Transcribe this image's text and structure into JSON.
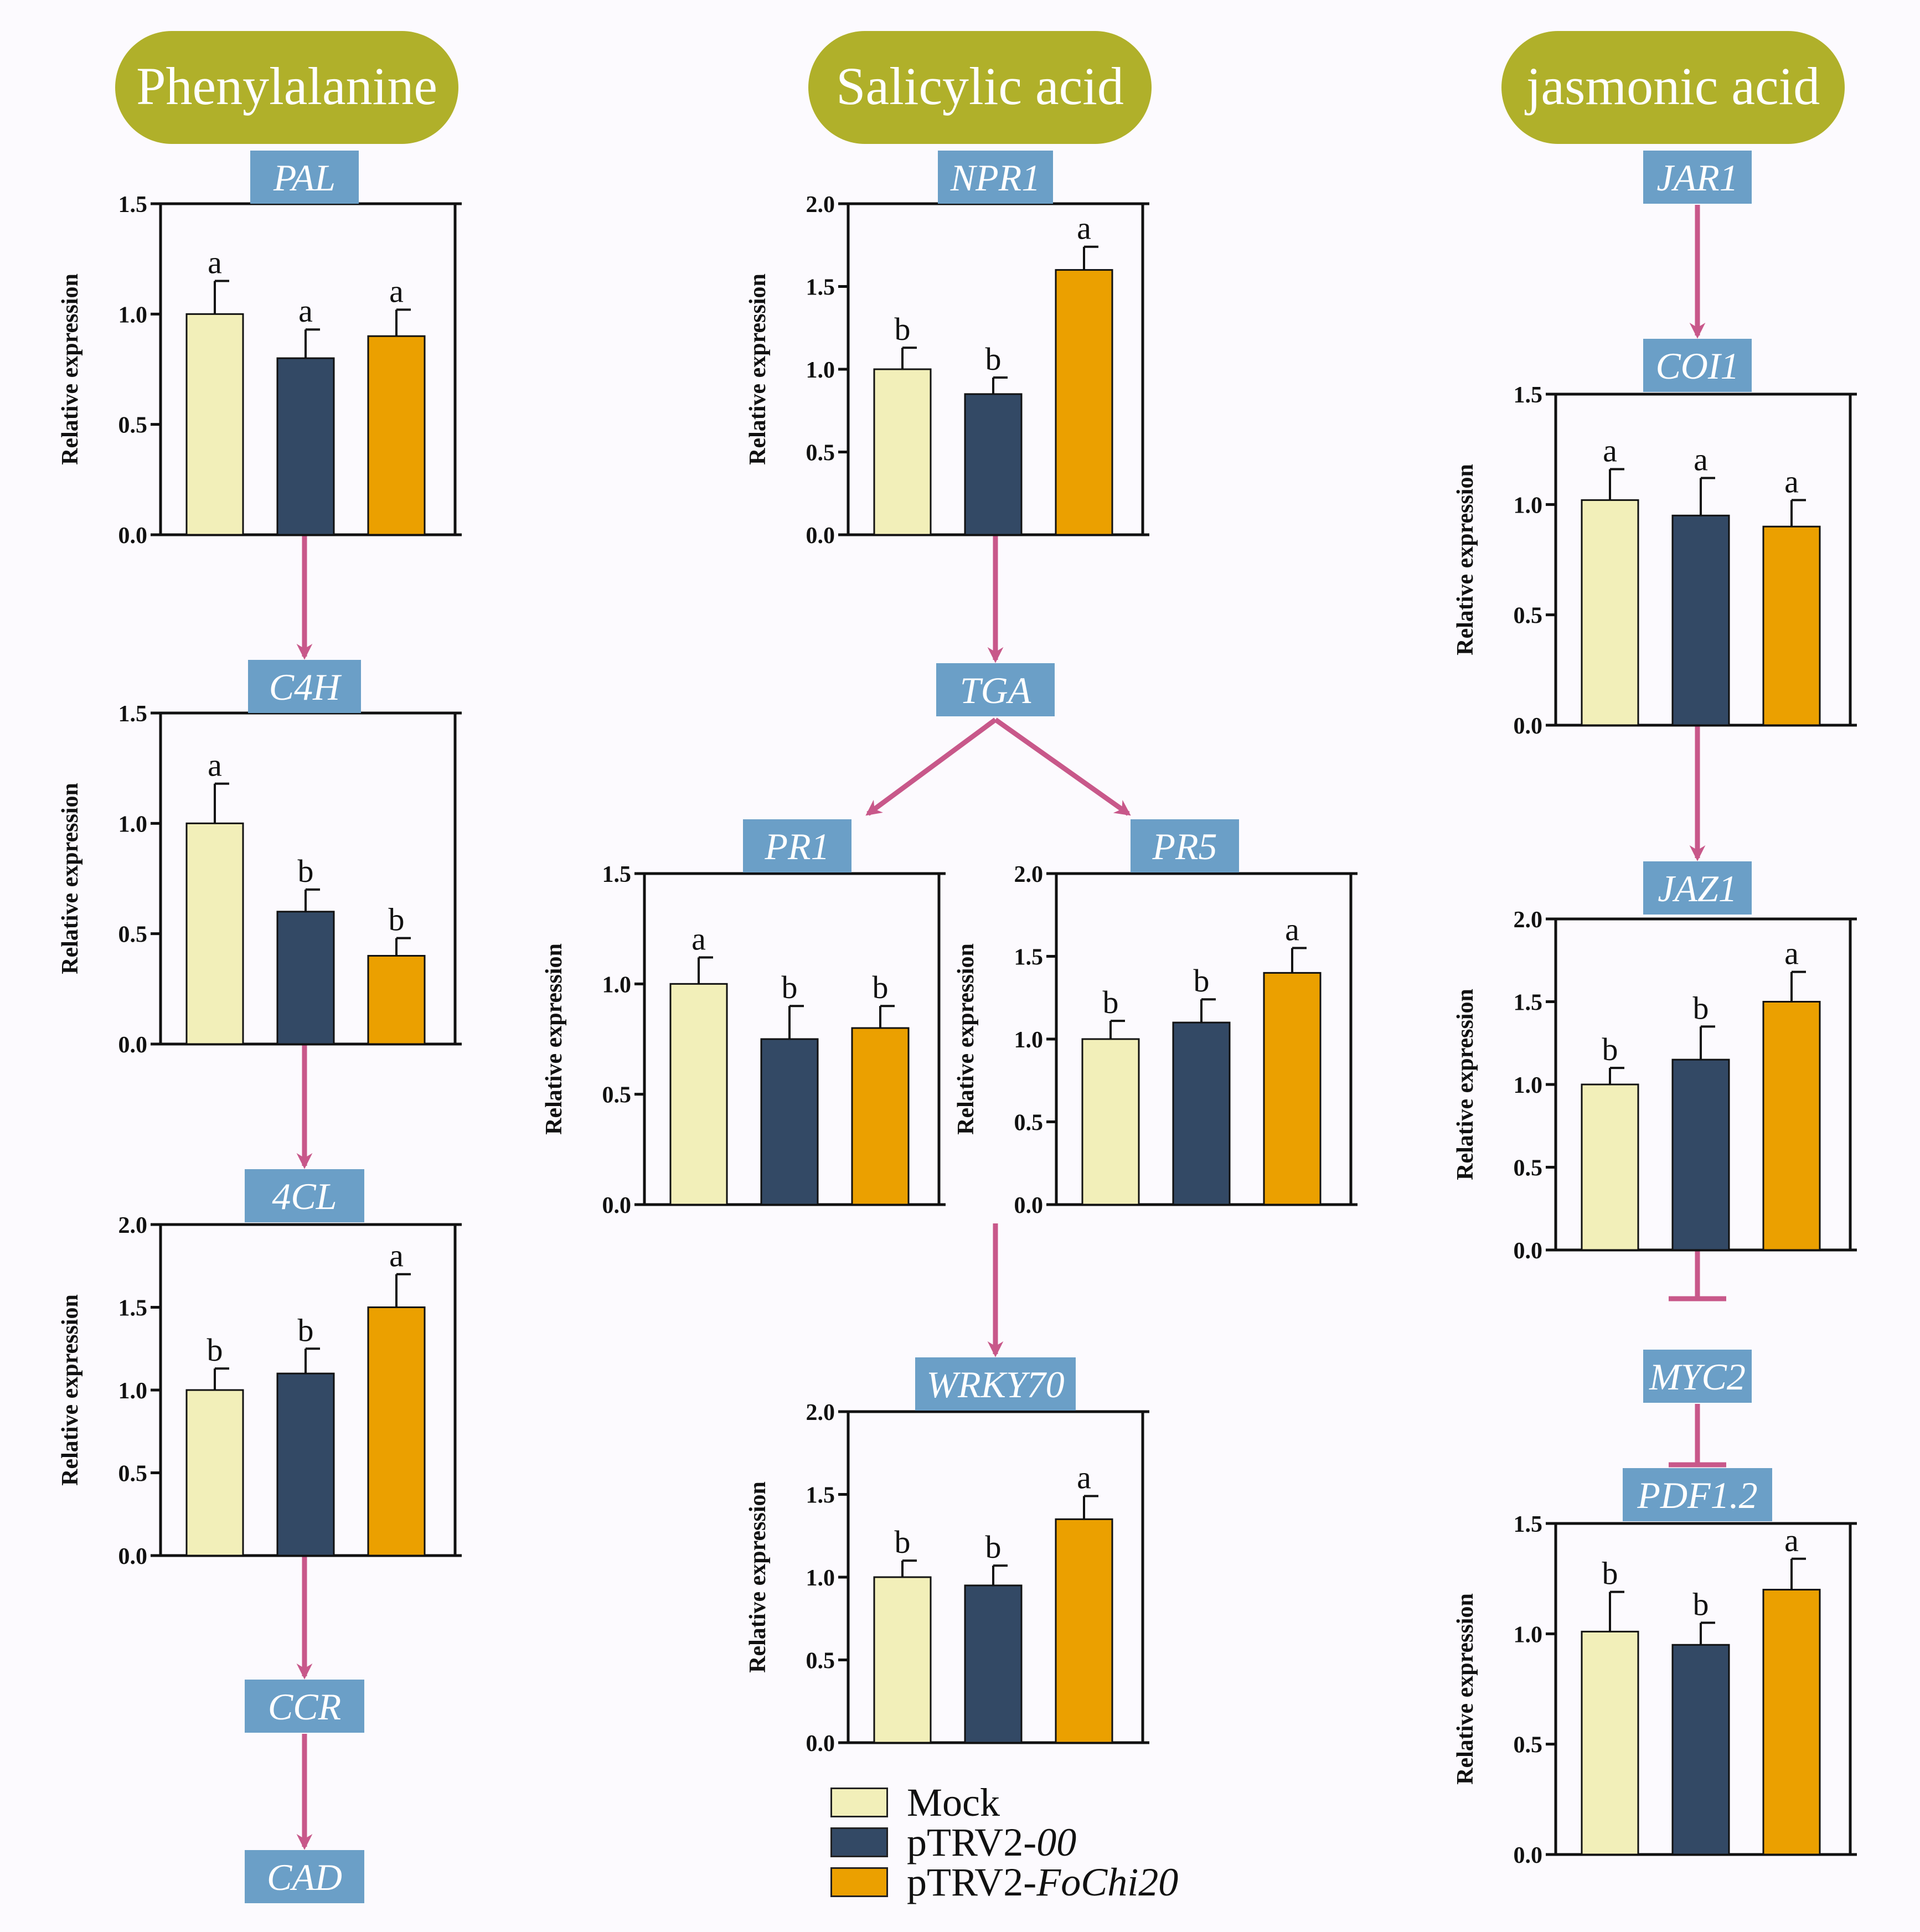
{
  "colors": {
    "mock": "#f2efb9",
    "trv00": "#334965",
    "fochi20": "#eba000",
    "pill": "#b0b02a",
    "gene_box": "#6b9fc7",
    "arrow": "#c8588a",
    "axis": "#111111"
  },
  "pathways": [
    {
      "id": "phe",
      "label": "Phenylalanine"
    },
    {
      "id": "sa",
      "label": "Salicylic acid"
    },
    {
      "id": "ja",
      "label": "jasmonic acid"
    }
  ],
  "gene_labels": {
    "PAL": "PAL",
    "C4H": "C4H",
    "4CL": "4CL",
    "CCR": "CCR",
    "CAD": "CAD",
    "NPR1": "NPR1",
    "TGA": "TGA",
    "PR1": "PR1",
    "PR5": "PR5",
    "WRKY70": "WRKY70",
    "JAR1": "JAR1",
    "COI1": "COI1",
    "JAZ1": "JAZ1",
    "MYC2": "MYC2",
    "PDF1.2": "PDF1.2"
  },
  "legend": {
    "mock": "Mock",
    "trv00_prefix": "pTRV2-",
    "trv00_italic": "00",
    "fochi20_prefix": "pTRV2-",
    "fochi20_italic": "FoChi20"
  },
  "chart_data": [
    {
      "id": "PAL",
      "type": "bar",
      "title": "PAL",
      "ylabel": "Relative expression",
      "ylim": [
        0,
        1.5
      ],
      "ticks": [
        "0.0",
        "0.5",
        "1.0",
        "1.5"
      ],
      "categories": [
        "Mock",
        "pTRV2-00",
        "pTRV2-FoChi20"
      ],
      "values": [
        1.0,
        0.8,
        0.9
      ],
      "errors": [
        0.15,
        0.13,
        0.12
      ],
      "letters": [
        "a",
        "a",
        "a"
      ]
    },
    {
      "id": "C4H",
      "type": "bar",
      "title": "C4H",
      "ylabel": "Relative expression",
      "ylim": [
        0,
        1.5
      ],
      "ticks": [
        "0.0",
        "0.5",
        "1.0",
        "1.5"
      ],
      "categories": [
        "Mock",
        "pTRV2-00",
        "pTRV2-FoChi20"
      ],
      "values": [
        1.0,
        0.6,
        0.4
      ],
      "errors": [
        0.18,
        0.1,
        0.08
      ],
      "letters": [
        "a",
        "b",
        "b"
      ]
    },
    {
      "id": "4CL",
      "type": "bar",
      "title": "4CL",
      "ylabel": "Relative expression",
      "ylim": [
        0,
        2.0
      ],
      "ticks": [
        "0.0",
        "0.5",
        "1.0",
        "1.5",
        "2.0"
      ],
      "categories": [
        "Mock",
        "pTRV2-00",
        "pTRV2-FoChi20"
      ],
      "values": [
        1.0,
        1.1,
        1.5
      ],
      "errors": [
        0.13,
        0.15,
        0.2
      ],
      "letters": [
        "b",
        "b",
        "a"
      ]
    },
    {
      "id": "NPR1",
      "type": "bar",
      "title": "NPR1",
      "ylabel": "Relative expression",
      "ylim": [
        0,
        2.0
      ],
      "ticks": [
        "0.0",
        "0.5",
        "1.0",
        "1.5",
        "2.0"
      ],
      "categories": [
        "Mock",
        "pTRV2-00",
        "pTRV2-FoChi20"
      ],
      "values": [
        1.0,
        0.85,
        1.6
      ],
      "errors": [
        0.13,
        0.1,
        0.14
      ],
      "letters": [
        "b",
        "b",
        "a"
      ]
    },
    {
      "id": "PR1",
      "type": "bar",
      "title": "PR1",
      "ylabel": "Relative expression",
      "ylim": [
        0,
        1.5
      ],
      "ticks": [
        "0.0",
        "0.5",
        "1.0",
        "1.5"
      ],
      "categories": [
        "Mock",
        "pTRV2-00",
        "pTRV2-FoChi20"
      ],
      "values": [
        1.0,
        0.75,
        0.8
      ],
      "errors": [
        0.12,
        0.15,
        0.1
      ],
      "letters": [
        "a",
        "b",
        "b"
      ]
    },
    {
      "id": "PR5",
      "type": "bar",
      "title": "PR5",
      "ylabel": "Relative expression",
      "ylim": [
        0,
        2.0
      ],
      "ticks": [
        "0.0",
        "0.5",
        "1.0",
        "1.5",
        "2.0"
      ],
      "categories": [
        "Mock",
        "pTRV2-00",
        "pTRV2-FoChi20"
      ],
      "values": [
        1.0,
        1.1,
        1.4
      ],
      "errors": [
        0.11,
        0.14,
        0.15
      ],
      "letters": [
        "b",
        "b",
        "a"
      ]
    },
    {
      "id": "WRKY70",
      "type": "bar",
      "title": "WRKY70",
      "ylabel": "Relative expression",
      "ylim": [
        0,
        2.0
      ],
      "ticks": [
        "0.0",
        "0.5",
        "1.0",
        "1.5",
        "2.0"
      ],
      "categories": [
        "Mock",
        "pTRV2-00",
        "pTRV2-FoChi20"
      ],
      "values": [
        1.0,
        0.95,
        1.35
      ],
      "errors": [
        0.1,
        0.12,
        0.14
      ],
      "letters": [
        "b",
        "b",
        "a"
      ]
    },
    {
      "id": "COI1",
      "type": "bar",
      "title": "COI1",
      "ylabel": "Relative expression",
      "ylim": [
        0,
        1.5
      ],
      "ticks": [
        "0.0",
        "0.5",
        "1.0",
        "1.5"
      ],
      "categories": [
        "Mock",
        "pTRV2-00",
        "pTRV2-FoChi20"
      ],
      "values": [
        1.02,
        0.95,
        0.9
      ],
      "errors": [
        0.14,
        0.17,
        0.12
      ],
      "letters": [
        "a",
        "a",
        "a"
      ]
    },
    {
      "id": "JAZ1",
      "type": "bar",
      "title": "JAZ1",
      "ylabel": "Relative expression",
      "ylim": [
        0,
        2.0
      ],
      "ticks": [
        "0.0",
        "0.5",
        "1.0",
        "1.5",
        "2.0"
      ],
      "categories": [
        "Mock",
        "pTRV2-00",
        "pTRV2-FoChi20"
      ],
      "values": [
        1.0,
        1.15,
        1.5
      ],
      "errors": [
        0.1,
        0.2,
        0.18
      ],
      "letters": [
        "b",
        "b",
        "a"
      ]
    },
    {
      "id": "PDF1.2",
      "type": "bar",
      "title": "PDF1.2",
      "ylabel": "Relative expression",
      "ylim": [
        0,
        1.5
      ],
      "ticks": [
        "0.0",
        "0.5",
        "1.0",
        "1.5"
      ],
      "categories": [
        "Mock",
        "pTRV2-00",
        "pTRV2-FoChi20"
      ],
      "values": [
        1.01,
        0.95,
        1.2
      ],
      "errors": [
        0.18,
        0.1,
        0.14
      ],
      "letters": [
        "b",
        "b",
        "a"
      ]
    }
  ]
}
